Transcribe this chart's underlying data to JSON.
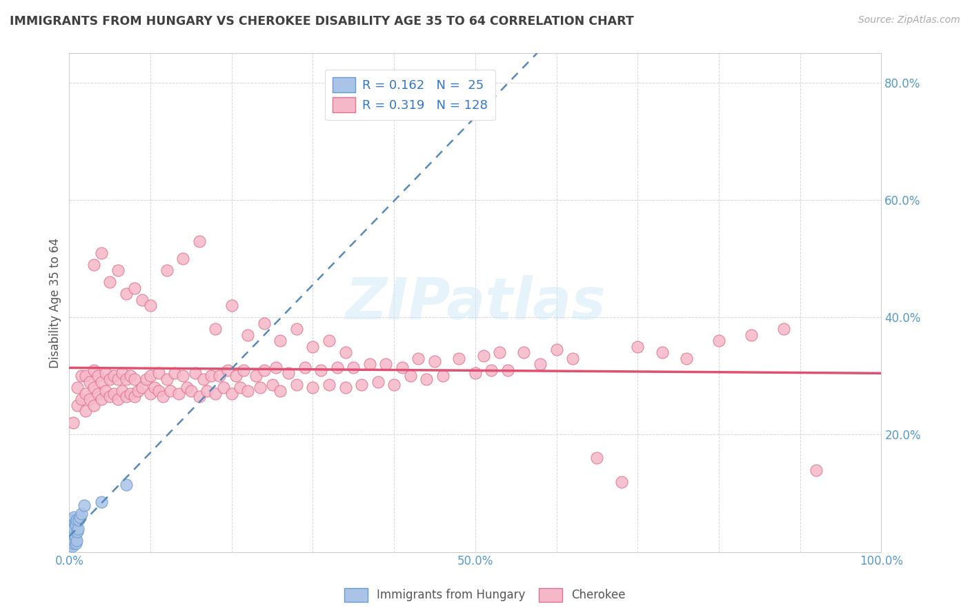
{
  "title": "IMMIGRANTS FROM HUNGARY VS CHEROKEE DISABILITY AGE 35 TO 64 CORRELATION CHART",
  "source": "Source: ZipAtlas.com",
  "ylabel": "Disability Age 35 to 64",
  "xlim": [
    0.0,
    1.0
  ],
  "ylim": [
    0.0,
    0.85
  ],
  "hungary_color": "#aac4e8",
  "cherokee_color": "#f5b8c8",
  "hungary_edge": "#6699cc",
  "cherokee_edge": "#e07090",
  "trend_hungary_color": "#5588bb",
  "trend_cherokee_color": "#e05070",
  "background_color": "#ffffff",
  "grid_color": "#cccccc",
  "title_color": "#404040",
  "tick_color": "#5599cc",
  "hungary_x": [
    0.003,
    0.003,
    0.004,
    0.004,
    0.004,
    0.005,
    0.005,
    0.005,
    0.006,
    0.006,
    0.006,
    0.007,
    0.007,
    0.008,
    0.008,
    0.009,
    0.009,
    0.01,
    0.011,
    0.012,
    0.013,
    0.015,
    0.018,
    0.04,
    0.07
  ],
  "hungary_y": [
    0.015,
    0.025,
    0.01,
    0.02,
    0.04,
    0.015,
    0.03,
    0.055,
    0.02,
    0.04,
    0.06,
    0.025,
    0.05,
    0.015,
    0.045,
    0.02,
    0.055,
    0.035,
    0.04,
    0.055,
    0.06,
    0.065,
    0.08,
    0.085,
    0.115
  ],
  "cherokee_x": [
    0.005,
    0.01,
    0.01,
    0.015,
    0.015,
    0.02,
    0.02,
    0.02,
    0.025,
    0.025,
    0.03,
    0.03,
    0.03,
    0.035,
    0.035,
    0.04,
    0.04,
    0.045,
    0.045,
    0.05,
    0.05,
    0.055,
    0.055,
    0.06,
    0.06,
    0.065,
    0.065,
    0.07,
    0.07,
    0.075,
    0.075,
    0.08,
    0.08,
    0.085,
    0.09,
    0.095,
    0.1,
    0.1,
    0.105,
    0.11,
    0.11,
    0.115,
    0.12,
    0.125,
    0.13,
    0.135,
    0.14,
    0.145,
    0.15,
    0.155,
    0.16,
    0.165,
    0.17,
    0.175,
    0.18,
    0.185,
    0.19,
    0.195,
    0.2,
    0.205,
    0.21,
    0.215,
    0.22,
    0.23,
    0.235,
    0.24,
    0.25,
    0.255,
    0.26,
    0.27,
    0.28,
    0.29,
    0.3,
    0.31,
    0.32,
    0.33,
    0.34,
    0.35,
    0.36,
    0.37,
    0.38,
    0.39,
    0.4,
    0.41,
    0.42,
    0.43,
    0.44,
    0.45,
    0.46,
    0.48,
    0.5,
    0.51,
    0.52,
    0.53,
    0.54,
    0.56,
    0.58,
    0.6,
    0.62,
    0.65,
    0.68,
    0.7,
    0.73,
    0.76,
    0.8,
    0.84,
    0.88,
    0.92,
    0.03,
    0.04,
    0.05,
    0.06,
    0.07,
    0.08,
    0.09,
    0.1,
    0.12,
    0.14,
    0.16,
    0.18,
    0.2,
    0.22,
    0.24,
    0.26,
    0.28,
    0.3,
    0.32,
    0.34
  ],
  "cherokee_y": [
    0.22,
    0.25,
    0.28,
    0.26,
    0.3,
    0.24,
    0.27,
    0.3,
    0.26,
    0.29,
    0.25,
    0.28,
    0.31,
    0.27,
    0.3,
    0.26,
    0.29,
    0.275,
    0.305,
    0.265,
    0.295,
    0.27,
    0.3,
    0.26,
    0.295,
    0.275,
    0.305,
    0.265,
    0.295,
    0.27,
    0.3,
    0.265,
    0.295,
    0.275,
    0.28,
    0.295,
    0.27,
    0.3,
    0.28,
    0.275,
    0.305,
    0.265,
    0.295,
    0.275,
    0.305,
    0.27,
    0.3,
    0.28,
    0.275,
    0.305,
    0.265,
    0.295,
    0.275,
    0.3,
    0.27,
    0.3,
    0.28,
    0.31,
    0.27,
    0.3,
    0.28,
    0.31,
    0.275,
    0.3,
    0.28,
    0.31,
    0.285,
    0.315,
    0.275,
    0.305,
    0.285,
    0.315,
    0.28,
    0.31,
    0.285,
    0.315,
    0.28,
    0.315,
    0.285,
    0.32,
    0.29,
    0.32,
    0.285,
    0.315,
    0.3,
    0.33,
    0.295,
    0.325,
    0.3,
    0.33,
    0.305,
    0.335,
    0.31,
    0.34,
    0.31,
    0.34,
    0.32,
    0.345,
    0.33,
    0.16,
    0.12,
    0.35,
    0.34,
    0.33,
    0.36,
    0.37,
    0.38,
    0.14,
    0.49,
    0.51,
    0.46,
    0.48,
    0.44,
    0.45,
    0.43,
    0.42,
    0.48,
    0.5,
    0.53,
    0.38,
    0.42,
    0.37,
    0.39,
    0.36,
    0.38,
    0.35,
    0.36,
    0.34
  ]
}
